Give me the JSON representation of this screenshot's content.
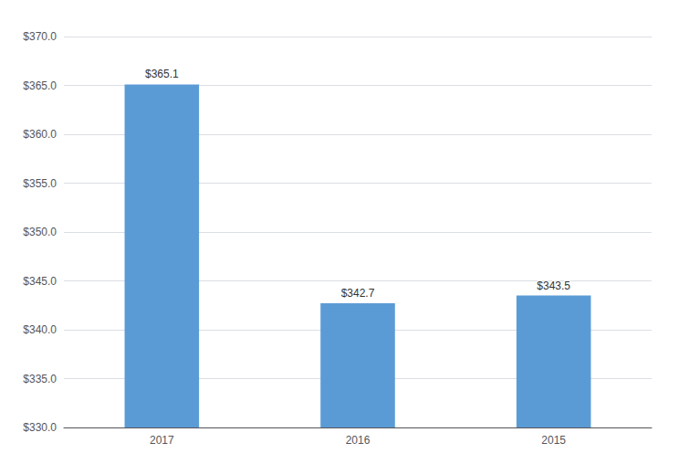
{
  "chart_data": {
    "type": "bar",
    "categories": [
      "2017",
      "2016",
      "2015"
    ],
    "values": [
      365.1,
      342.7,
      343.5
    ],
    "value_labels": [
      "$365.1",
      "$342.7",
      "$343.5"
    ],
    "data_labels": true,
    "color": "#5B9BD5",
    "ylim": [
      330.0,
      370.0
    ],
    "yticks": [
      {
        "value": 330,
        "label": "$330.0"
      },
      {
        "value": 335,
        "label": "$335.0"
      },
      {
        "value": 340,
        "label": "$340.0"
      },
      {
        "value": 345,
        "label": "$345.0"
      },
      {
        "value": 350,
        "label": "$350.0"
      },
      {
        "value": 355,
        "label": "$355.0"
      },
      {
        "value": 360,
        "label": "$360.0"
      },
      {
        "value": 365,
        "label": "$365.0"
      },
      {
        "value": 370,
        "label": "$370.0"
      }
    ],
    "grid": true
  }
}
